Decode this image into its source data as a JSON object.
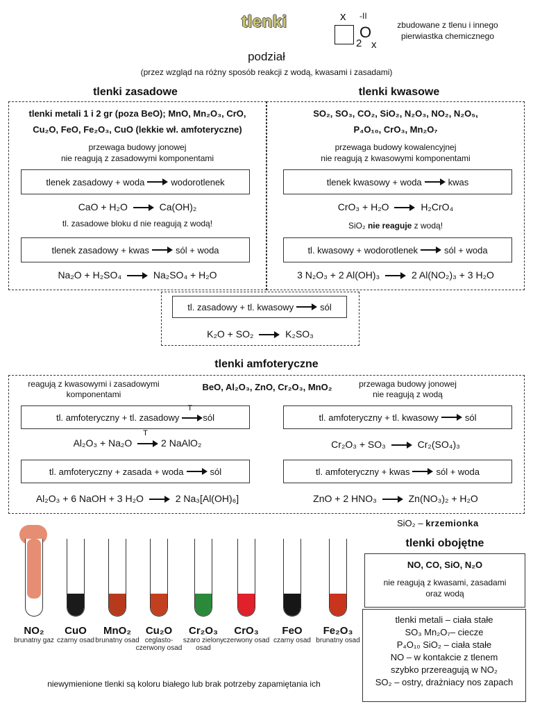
{
  "header": {
    "title": "tlenki",
    "formula_x": "x",
    "formula_ox": "-II",
    "formula_o": "O",
    "formula_2": "2",
    "formula_x2": "x",
    "description": "zbudowane z tlenu i innego pierwiastka chemicznego"
  },
  "division": {
    "title": "podział",
    "subtitle": "(przez wzgląd na różny sposób reakcji z wodą, kwasami i zasadami)"
  },
  "basic": {
    "title": "tlenki zasadowe",
    "list_line1": "tlenki metali 1 i 2 gr (poza BeO); MnO, Mn₂O₃, CrO,",
    "list_line2": "Cu₂O, FeO, Fe₂O₃, CuO (lekkie wł. amfoteryczne)",
    "note1": "przewaga budowy jonowej",
    "note2": "nie reagują z zasadowymi komponentami",
    "rule1_left": "tlenek zasadowy + woda",
    "rule1_right": "wodorotlenek",
    "eq1_left": "CaO + H₂O",
    "eq1_right": "Ca(OH)₂",
    "note3": "tl. zasadowe bloku d nie reagują z wodą!",
    "rule2_left": "tlenek zasadowy + kwas",
    "rule2_right": "sól + woda",
    "eq2_left": "Na₂O + H₂SO₄",
    "eq2_right": "Na₂SO₄ + H₂O"
  },
  "acidic": {
    "title": "tlenki kwasowe",
    "list_line1": "SO₂, SO₃, CO₂, SiO₂, N₂O₃, NO₂, N₂O₅,",
    "list_line2": "P₄O₁₀, CrO₃, Mn₂O₇",
    "note1": "przewaga budowy kowalencyjnej",
    "note2": "nie reagują z kwasowymi komponentami",
    "rule1_left": "tlenek kwasowy + woda",
    "rule1_right": "kwas",
    "eq1_left": "CrO₃ + H₂O",
    "eq1_right": "H₂CrO₄",
    "note3_a": "SiO₂",
    "note3_b": "nie reaguje",
    "note3_c": "z wodą!",
    "rule2_left": "tl. kwasowy + wodorotlenek",
    "rule2_right": "sól + woda",
    "eq2_left": "3 N₂O₃ + 2 Al(OH)₃",
    "eq2_right": "2 Al(NO₂)₃ + 3 H₂O"
  },
  "combined": {
    "rule_left": "tl. zasadowy + tl. kwasowy",
    "rule_right": "sól",
    "eq_left": "K₂O + SO₂",
    "eq_right": "K₂SO₃"
  },
  "amphoteric": {
    "title": "tlenki amfoteryczne",
    "left_note": "reagują z kwasowymi i zasadowymi komponentami",
    "list": "BeO, Al₂O₃, ZnO, Cr₂O₃, MnO₂",
    "right_note1": "przewaga budowy jonowej",
    "right_note2": "nie reagują z wodą",
    "r1_left": "tl. amfoteryczny + tl. zasadowy",
    "r1_t": "T",
    "r1_right": "sól",
    "e1_left": "Al₂O₃ + Na₂O",
    "e1_t": "T",
    "e1_right": "2 NaAlO₂",
    "r2_left": "tl. amfoteryczny + tl. kwasowy",
    "r2_right": "sól",
    "e2_left": "Cr₂O₃ + SO₃",
    "e2_right": "Cr₂(SO₄)₃",
    "r3_left": "tl. amfoteryczny + zasada + woda",
    "r3_right": "sól",
    "e3_left": "Al₂O₃ + 6 NaOH + 3 H₂O",
    "e3_right": "2 Na₃[Al(OH)₆]",
    "r4_left": "tl. amfoteryczny + kwas",
    "r4_right": "sól + woda",
    "e4_left": "ZnO + 2 HNO₃",
    "e4_right": "Zn(NO₃)₂ + H₂O"
  },
  "silica": {
    "formula": "SiO₂",
    "dash": " – ",
    "name": "krzemionka"
  },
  "neutral": {
    "title": "tlenki obojętne",
    "list": "NO, CO, SiO, N₂O",
    "note1": "nie reagują z kwasami, zasadami",
    "note2": "oraz wodą",
    "state1": "tlenki metali – ciała stałe",
    "state2": "SO₃ Mn₂O₇– ciecze",
    "state3": "P₄O₁₀ SiO₂ – ciała stałe",
    "state4": "NO – w kontakcie z tlenem",
    "state5": "szybko przereagują w NO₂",
    "state6": "SO₂ – ostry, drażniacy nos zapach"
  },
  "tubes": [
    {
      "name": "NO₂",
      "desc": "brunatny gaz",
      "color": "#e07a5c"
    },
    {
      "name": "CuO",
      "desc": "czarny osad",
      "color": "#1a1a1a"
    },
    {
      "name": "MnO₂",
      "desc": "brunatny osad",
      "color": "#b83a1c"
    },
    {
      "name": "Cu₂O",
      "desc": "ceglasto-czerwony osad",
      "color": "#c2401f"
    },
    {
      "name": "Cr₂O₃",
      "desc": "szaro zielony osad",
      "color": "#2a8a3a"
    },
    {
      "name": "CrO₃",
      "desc": "czerwony osad",
      "color": "#e0202a"
    },
    {
      "name": "FeO",
      "desc": "czarny osad",
      "color": "#161616"
    },
    {
      "name": "Fe₂O₃",
      "desc": "brunatny osad",
      "color": "#c8341c"
    }
  ],
  "footer": "niewymienione tlenki są koloru białego lub brak potrzeby zapamiętania ich"
}
